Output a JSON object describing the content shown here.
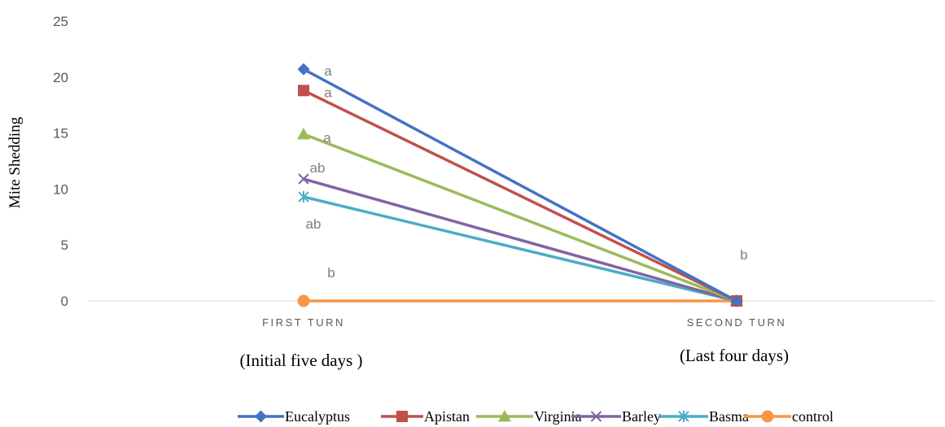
{
  "chart_data": {
    "type": "line",
    "title": "",
    "xlabel": "",
    "ylabel": "Mite Shedding",
    "ylim": [
      0,
      25
    ],
    "yticks": [
      "0",
      "5",
      "10",
      "15",
      "20",
      "25"
    ],
    "categories": [
      "FIRST TURN",
      "SECOND TURN"
    ],
    "category_sublabels": [
      "(Initial five days )",
      "(Last four days)"
    ],
    "grid": false,
    "legend_position": "bottom",
    "series": [
      {
        "name": "Eucalyptus",
        "values": [
          20.7,
          0
        ],
        "color": "#4472C4",
        "marker": "diamond"
      },
      {
        "name": "Apistan",
        "values": [
          18.8,
          0
        ],
        "color": "#C0504D",
        "marker": "square"
      },
      {
        "name": "Virginia",
        "values": [
          14.9,
          0
        ],
        "color": "#9BBB59",
        "marker": "triangle"
      },
      {
        "name": "Barley",
        "values": [
          10.9,
          0
        ],
        "color": "#8064A2",
        "marker": "x"
      },
      {
        "name": "Basma",
        "values": [
          9.3,
          0
        ],
        "color": "#4BACC6",
        "marker": "star"
      },
      {
        "name": "control",
        "values": [
          0,
          0
        ],
        "color": "#F79646",
        "marker": "circle"
      }
    ],
    "annotations": [
      {
        "text": "a",
        "category": 0,
        "value": 20.7
      },
      {
        "text": "a",
        "category": 0,
        "value": 18.8
      },
      {
        "text": "a",
        "category": 0,
        "value": 14.9
      },
      {
        "text": "ab",
        "category": 0,
        "value": 10.9
      },
      {
        "text": "ab",
        "category": 0,
        "value": 9.3
      },
      {
        "text": "b",
        "category": 0,
        "value": 0
      },
      {
        "text": "b",
        "category": 1,
        "value": 0
      }
    ]
  }
}
